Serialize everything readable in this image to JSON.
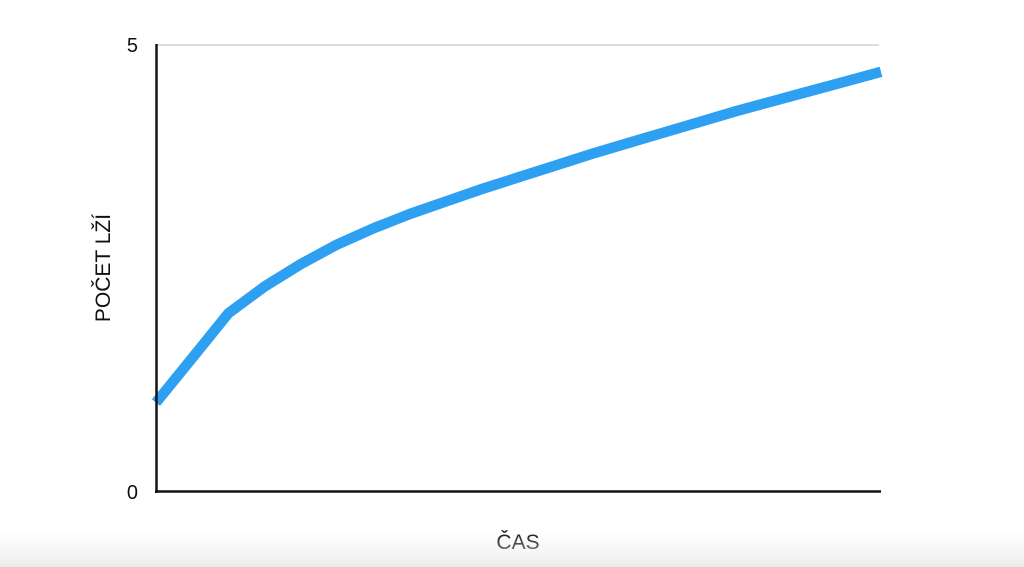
{
  "chart": {
    "y_axis": {
      "title": "POČET LŽÍ",
      "ticks": {
        "top": "5",
        "bottom": "0"
      }
    },
    "x_axis": {
      "title": "ČAS"
    }
  },
  "chart_data": {
    "type": "line",
    "title": "",
    "xlabel": "ČAS",
    "ylabel": "POČET LŽÍ",
    "xlim": [
      0,
      1
    ],
    "ylim": [
      0,
      5
    ],
    "y_ticks": [
      0,
      5
    ],
    "gridline_values": [
      5
    ],
    "legend": "none",
    "description": "Number of lies grows over time: fast linear rise at the start, then continually slowing logarithmic-style growth that never quite reaches 5.",
    "series": [
      {
        "name": "počet lží",
        "x": [
          0,
          0.05,
          0.1,
          0.15,
          0.2,
          0.25,
          0.3,
          0.35,
          0.4,
          0.45,
          0.5,
          0.55,
          0.6,
          0.65,
          0.7,
          0.75,
          0.8,
          0.85,
          0.9,
          0.95,
          1.0
        ],
        "values": [
          1.0,
          1.5,
          2.0,
          2.3,
          2.55,
          2.77,
          2.95,
          3.11,
          3.25,
          3.39,
          3.52,
          3.65,
          3.78,
          3.9,
          4.02,
          4.14,
          4.26,
          4.37,
          4.48,
          4.59,
          4.7
        ]
      }
    ],
    "colors": {
      "line": "#2DA0F2",
      "axis": "#131313",
      "gridline": "#c9c9c9",
      "text": "#111111"
    }
  }
}
